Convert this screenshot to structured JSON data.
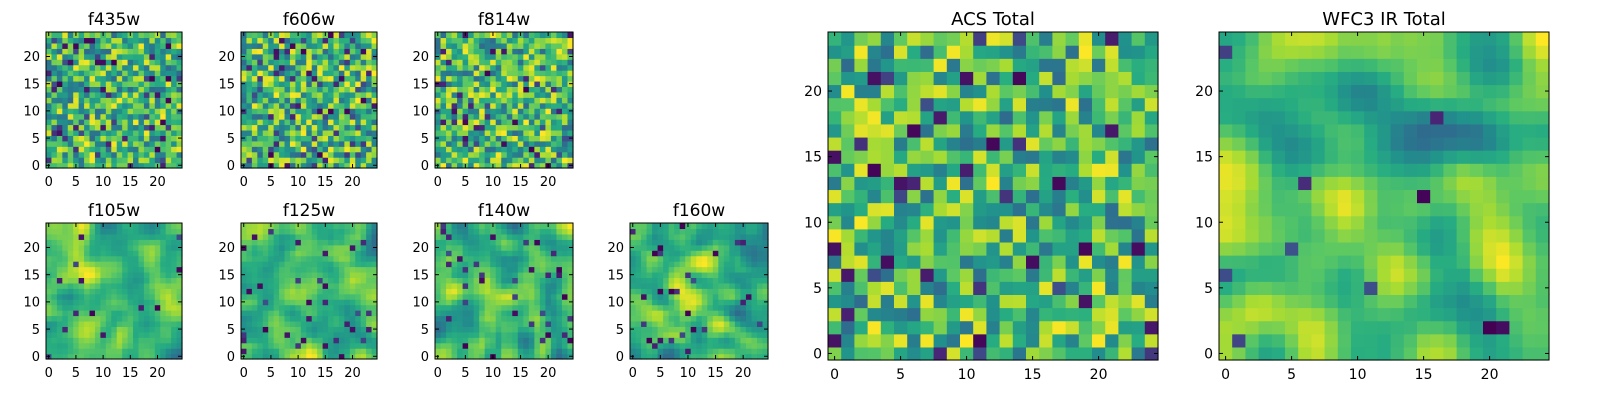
{
  "chart_data": [
    {
      "type": "heatmap",
      "title": "f435w",
      "xlim": [
        0,
        24
      ],
      "ylim": [
        0,
        24
      ],
      "xticks": [
        "0",
        "5",
        "10",
        "15",
        "20"
      ],
      "yticks": [
        "0",
        "5",
        "10",
        "15",
        "20"
      ],
      "colormap": "viridis",
      "seed": 11,
      "smooth": 0,
      "holes": 0.09
    },
    {
      "type": "heatmap",
      "title": "f606w",
      "xlim": [
        0,
        24
      ],
      "ylim": [
        0,
        24
      ],
      "xticks": [
        "0",
        "5",
        "10",
        "15",
        "20"
      ],
      "yticks": [
        "0",
        "5",
        "10",
        "15",
        "20"
      ],
      "colormap": "viridis",
      "seed": 23,
      "smooth": 0,
      "holes": 0.08
    },
    {
      "type": "heatmap",
      "title": "f814w",
      "xlim": [
        0,
        24
      ],
      "ylim": [
        0,
        24
      ],
      "xticks": [
        "0",
        "5",
        "10",
        "15",
        "20"
      ],
      "yticks": [
        "0",
        "5",
        "10",
        "15",
        "20"
      ],
      "colormap": "viridis",
      "seed": 37,
      "smooth": 0,
      "holes": 0.07
    },
    {
      "type": "heatmap",
      "title": "f105w",
      "xlim": [
        0,
        24
      ],
      "ylim": [
        0,
        24
      ],
      "xticks": [
        "0",
        "5",
        "10",
        "15",
        "20"
      ],
      "yticks": [
        "0",
        "5",
        "10",
        "15",
        "20"
      ],
      "colormap": "viridis",
      "seed": 41,
      "smooth": 2,
      "holes": 0.03
    },
    {
      "type": "heatmap",
      "title": "f125w",
      "xlim": [
        0,
        24
      ],
      "ylim": [
        0,
        24
      ],
      "xticks": [
        "0",
        "5",
        "10",
        "15",
        "20"
      ],
      "yticks": [
        "0",
        "5",
        "10",
        "15",
        "20"
      ],
      "colormap": "viridis",
      "seed": 53,
      "smooth": 2,
      "holes": 0.04
    },
    {
      "type": "heatmap",
      "title": "f140w",
      "xlim": [
        0,
        24
      ],
      "ylim": [
        0,
        24
      ],
      "xticks": [
        "0",
        "5",
        "10",
        "15",
        "20"
      ],
      "yticks": [
        "0",
        "5",
        "10",
        "15",
        "20"
      ],
      "colormap": "viridis",
      "seed": 67,
      "smooth": 2,
      "holes": 0.05
    },
    {
      "type": "heatmap",
      "title": "f160w",
      "xlim": [
        0,
        24
      ],
      "ylim": [
        0,
        24
      ],
      "xticks": [
        "0",
        "5",
        "10",
        "15",
        "20"
      ],
      "yticks": [
        "0",
        "5",
        "10",
        "15",
        "20"
      ],
      "colormap": "viridis",
      "seed": 71,
      "smooth": 2,
      "holes": 0.04
    },
    {
      "type": "heatmap",
      "title": "ACS Total",
      "xlim": [
        0,
        24
      ],
      "ylim": [
        0,
        24
      ],
      "xticks": [
        "0",
        "5",
        "10",
        "15",
        "20"
      ],
      "yticks": [
        "0",
        "5",
        "10",
        "15",
        "20"
      ],
      "colormap": "viridis",
      "seed": 83,
      "smooth": 0,
      "holes": 0.05
    },
    {
      "type": "heatmap",
      "title": "WFC3 IR Total",
      "xlim": [
        0,
        24
      ],
      "ylim": [
        0,
        24
      ],
      "xticks": [
        "0",
        "5",
        "10",
        "15",
        "20"
      ],
      "yticks": [
        "0",
        "5",
        "10",
        "15",
        "20"
      ],
      "colormap": "viridis",
      "seed": 97,
      "smooth": 3,
      "holes": 0.02
    }
  ],
  "colors": {
    "viridis_low": "#440154",
    "viridis_mid": "#21918c",
    "viridis_high": "#fde725",
    "axis": "#000000",
    "background": "#ffffff"
  }
}
